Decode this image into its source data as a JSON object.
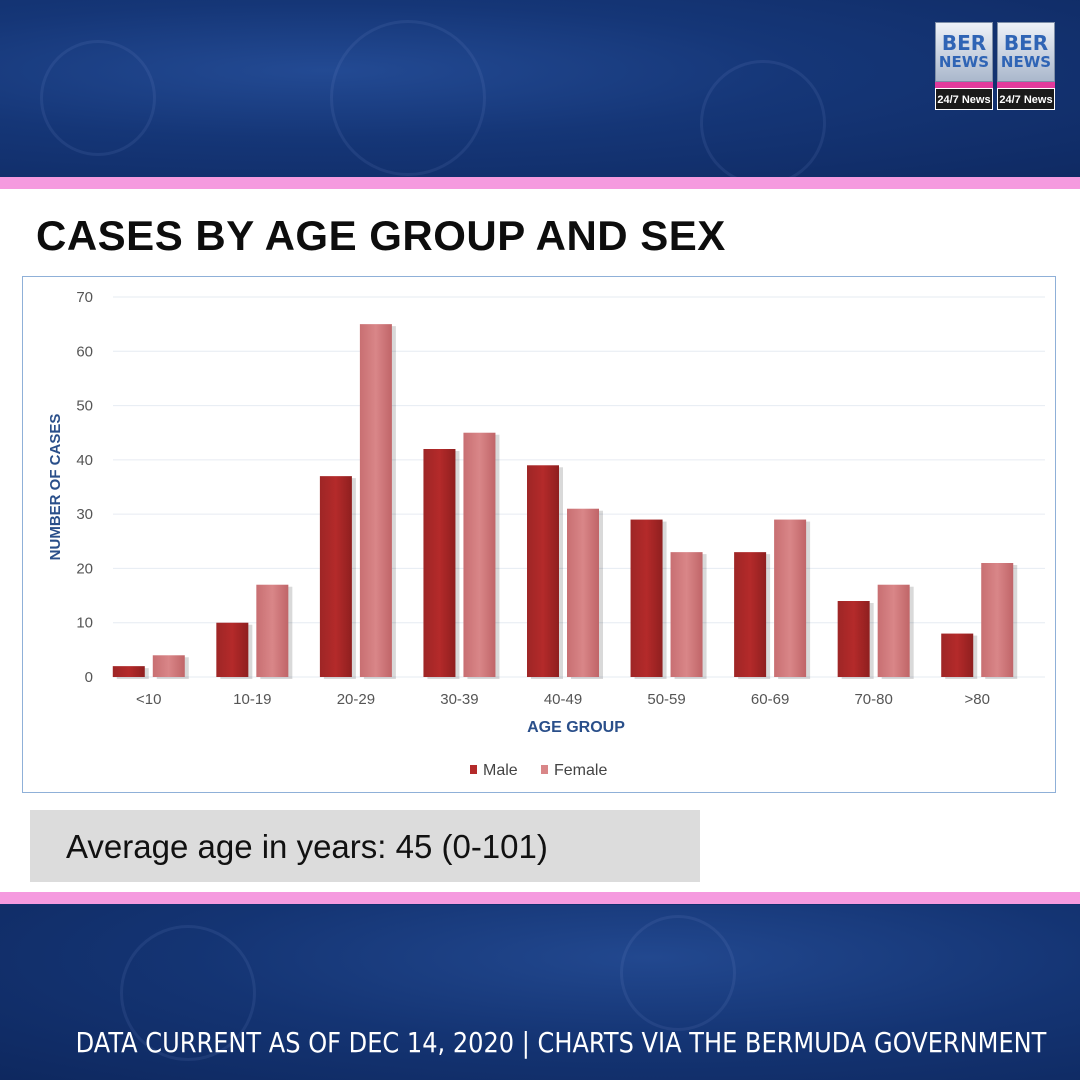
{
  "title": "CASES BY AGE GROUP AND SEX",
  "logo": {
    "line1": "BER",
    "line2": "NEWS",
    "tag": "24/7 News"
  },
  "average": "Average age in years: 45 (0-101)",
  "footer": "DATA CURRENT AS OF DEC 14, 2020 | CHARTS VIA THE BERMUDA GOVERNMENT",
  "colors": {
    "male": "#b42a2a",
    "female": "#d98688",
    "axis_text": "#2a4f8a",
    "tick_text": "#555555",
    "pink": "#f59adf",
    "navy": "#153677"
  },
  "chart_data": {
    "type": "bar",
    "title": "CASES BY AGE GROUP AND SEX",
    "xlabel": "AGE GROUP",
    "ylabel": "NUMBER OF CASES",
    "categories": [
      "<10",
      "10-19",
      "20-29",
      "30-39",
      "40-49",
      "50-59",
      "60-69",
      "70-80",
      ">80"
    ],
    "series": [
      {
        "name": "Male",
        "values": [
          2,
          10,
          37,
          42,
          39,
          29,
          23,
          14,
          8
        ]
      },
      {
        "name": "Female",
        "values": [
          4,
          17,
          65,
          45,
          31,
          23,
          29,
          17,
          21
        ]
      }
    ],
    "yticks": [
      "0",
      "10",
      "20",
      "30",
      "40",
      "50",
      "60",
      "70"
    ],
    "ylim": [
      0,
      70
    ],
    "grid": true,
    "legend": "bottom-center"
  }
}
